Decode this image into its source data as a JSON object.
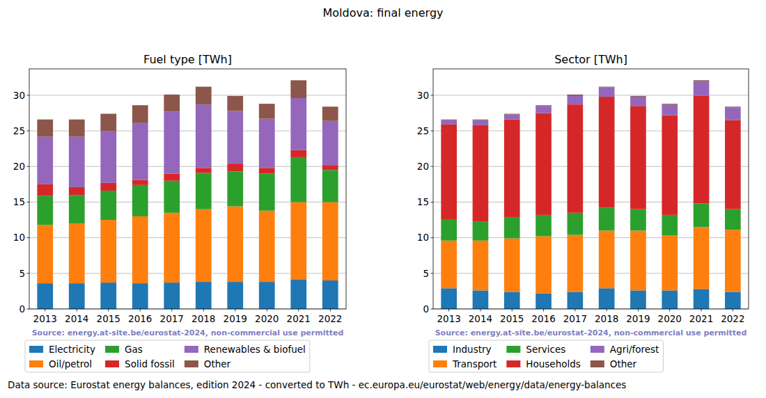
{
  "title": "Moldova: final energy",
  "footer": "Data source: Eurostat energy balances, edition 2024 - converted to TWh - ec.europa.eu/eurostat/web/energy/data/energy-balances",
  "chart_data": [
    {
      "type": "bar",
      "stacked": true,
      "grid": true,
      "legend": "bottom",
      "title": "Fuel type [TWh]",
      "annotations": [
        "Source: energy.at-site.be/eurostat-2024, non-commercial use permitted"
      ],
      "categories": [
        "2013",
        "2014",
        "2015",
        "2016",
        "2017",
        "2018",
        "2019",
        "2020",
        "2021",
        "2022"
      ],
      "ylim": [
        0,
        33.7
      ],
      "yticks": [
        0,
        5,
        10,
        15,
        20,
        25,
        30
      ],
      "series": [
        {
          "name": "Electricity",
          "color": "#1f77b4",
          "values": [
            3.6,
            3.6,
            3.7,
            3.6,
            3.7,
            3.8,
            3.8,
            3.8,
            4.1,
            4.0
          ]
        },
        {
          "name": "Oil/petrol",
          "color": "#ff7f0e",
          "values": [
            8.2,
            8.4,
            8.8,
            9.4,
            9.8,
            10.2,
            10.6,
            10.0,
            10.9,
            11.0
          ]
        },
        {
          "name": "Gas",
          "color": "#2ca02c",
          "values": [
            4.1,
            4.0,
            4.1,
            4.4,
            4.5,
            5.1,
            4.9,
            5.2,
            6.3,
            4.5
          ]
        },
        {
          "name": "Solid fossil",
          "color": "#d62728",
          "values": [
            1.6,
            1.1,
            1.1,
            0.7,
            1.0,
            0.7,
            1.1,
            0.8,
            1.0,
            0.7
          ]
        },
        {
          "name": "Renewables & biofuel",
          "color": "#9467bd",
          "values": [
            6.7,
            7.1,
            7.3,
            8.0,
            8.7,
            8.9,
            7.4,
            6.9,
            7.3,
            6.2
          ]
        },
        {
          "name": "Other",
          "color": "#8c564b",
          "values": [
            2.4,
            2.4,
            2.4,
            2.5,
            2.4,
            2.5,
            2.1,
            2.1,
            2.5,
            2.0
          ]
        }
      ]
    },
    {
      "type": "bar",
      "stacked": true,
      "grid": true,
      "legend": "bottom",
      "title": "Sector [TWh]",
      "annotations": [
        "Source: energy.at-site.be/eurostat-2024, non-commercial use permitted"
      ],
      "categories": [
        "2013",
        "2014",
        "2015",
        "2016",
        "2017",
        "2018",
        "2019",
        "2020",
        "2021",
        "2022"
      ],
      "ylim": [
        0,
        33.7
      ],
      "yticks": [
        0,
        5,
        10,
        15,
        20,
        25,
        30
      ],
      "series": [
        {
          "name": "Industry",
          "color": "#1f77b4",
          "values": [
            2.9,
            2.6,
            2.4,
            2.2,
            2.4,
            2.9,
            2.6,
            2.6,
            2.8,
            2.4
          ]
        },
        {
          "name": "Transport",
          "color": "#ff7f0e",
          "values": [
            6.7,
            7.0,
            7.5,
            8.0,
            8.0,
            8.1,
            8.4,
            7.7,
            8.7,
            8.7
          ]
        },
        {
          "name": "Services",
          "color": "#2ca02c",
          "values": [
            3.0,
            2.7,
            3.0,
            3.0,
            3.1,
            3.2,
            3.0,
            2.9,
            3.3,
            2.9
          ]
        },
        {
          "name": "Households",
          "color": "#d62728",
          "values": [
            13.3,
            13.5,
            13.7,
            14.3,
            15.2,
            15.6,
            14.5,
            14.0,
            15.1,
            12.5
          ]
        },
        {
          "name": "Agri/forest",
          "color": "#9467bd",
          "values": [
            0.6,
            0.7,
            0.7,
            1.0,
            1.2,
            1.3,
            1.3,
            1.5,
            2.0,
            1.8
          ]
        },
        {
          "name": "Other",
          "color": "#8c564b",
          "values": [
            0.1,
            0.1,
            0.1,
            0.1,
            0.2,
            0.1,
            0.1,
            0.1,
            0.2,
            0.1
          ]
        }
      ]
    }
  ]
}
